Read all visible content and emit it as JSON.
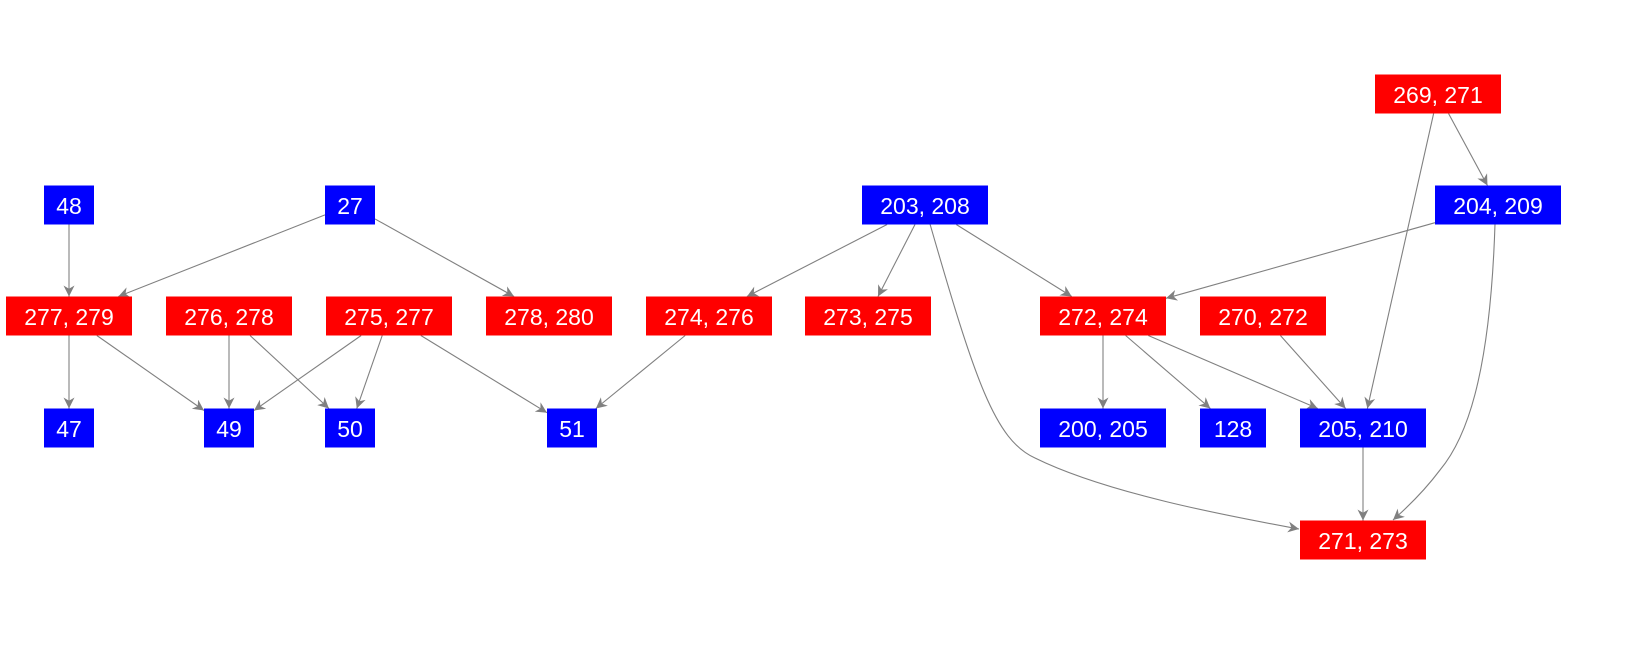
{
  "colors": {
    "red": "#ff0000",
    "blue": "#0000ff",
    "edge": "#808080",
    "label": "#ffffff"
  },
  "nodes": [
    {
      "id": "n269",
      "label": "269, 271",
      "color": "red"
    },
    {
      "id": "n48",
      "label": "48",
      "color": "blue"
    },
    {
      "id": "n27",
      "label": "27",
      "color": "blue"
    },
    {
      "id": "n203",
      "label": "203, 208",
      "color": "blue"
    },
    {
      "id": "n204",
      "label": "204, 209",
      "color": "blue"
    },
    {
      "id": "n277",
      "label": "277, 279",
      "color": "red"
    },
    {
      "id": "n276",
      "label": "276, 278",
      "color": "red"
    },
    {
      "id": "n275",
      "label": "275, 277",
      "color": "red"
    },
    {
      "id": "n278",
      "label": "278, 280",
      "color": "red"
    },
    {
      "id": "n274",
      "label": "274, 276",
      "color": "red"
    },
    {
      "id": "n273",
      "label": "273, 275",
      "color": "red"
    },
    {
      "id": "n272",
      "label": "272, 274",
      "color": "red"
    },
    {
      "id": "n270",
      "label": "270, 272",
      "color": "red"
    },
    {
      "id": "n47",
      "label": "47",
      "color": "blue"
    },
    {
      "id": "n49",
      "label": "49",
      "color": "blue"
    },
    {
      "id": "n50",
      "label": "50",
      "color": "blue"
    },
    {
      "id": "n51",
      "label": "51",
      "color": "blue"
    },
    {
      "id": "n200",
      "label": "200, 205",
      "color": "blue"
    },
    {
      "id": "n128",
      "label": "128",
      "color": "blue"
    },
    {
      "id": "n205",
      "label": "205, 210",
      "color": "blue"
    },
    {
      "id": "n271",
      "label": "271, 273",
      "color": "red"
    }
  ],
  "edges": [
    [
      "n48",
      "n277"
    ],
    [
      "n27",
      "n277"
    ],
    [
      "n27",
      "n278"
    ],
    [
      "n203",
      "n274"
    ],
    [
      "n203",
      "n273"
    ],
    [
      "n203",
      "n272"
    ],
    [
      "n203",
      "n271"
    ],
    [
      "n204",
      "n272"
    ],
    [
      "n204",
      "n271"
    ],
    [
      "n269",
      "n204"
    ],
    [
      "n269",
      "n205"
    ],
    [
      "n277",
      "n47"
    ],
    [
      "n277",
      "n49"
    ],
    [
      "n276",
      "n49"
    ],
    [
      "n276",
      "n50"
    ],
    [
      "n275",
      "n49"
    ],
    [
      "n275",
      "n50"
    ],
    [
      "n275",
      "n51"
    ],
    [
      "n274",
      "n51"
    ],
    [
      "n272",
      "n200"
    ],
    [
      "n272",
      "n128"
    ],
    [
      "n272",
      "n205"
    ],
    [
      "n270",
      "n205"
    ],
    [
      "n205",
      "n271"
    ]
  ]
}
